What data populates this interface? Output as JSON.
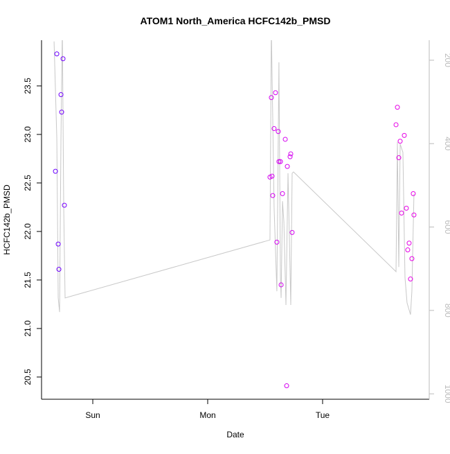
{
  "chart_data": {
    "type": "scatter",
    "title": "ATOM1 North_America HCFC142b_PMSD",
    "x_label": "Date",
    "y_label": "HCFC142b_PMSD",
    "xlim": [
      -0.446,
      2.928
    ],
    "xticks": [
      {
        "value": 0,
        "label": "Sun"
      },
      {
        "value": 1,
        "label": "Mon"
      },
      {
        "value": 2,
        "label": "Tue"
      }
    ],
    "ylim": [
      20.271,
      23.971
    ],
    "yticks": [
      20.5,
      {
        "value": 21,
        "label": "21.0"
      },
      21.5,
      {
        "value": 22,
        "label": "22.0"
      },
      22.5,
      {
        "value": 23,
        "label": "23.0"
      },
      23.5
    ],
    "y2lim": [
      1013,
      152
    ],
    "y2ticks": [
      200,
      400,
      600,
      800,
      1000
    ],
    "y2_color": "#bbbbbb",
    "series": [
      {
        "x": [
          -0.325,
          -0.313,
          -0.301,
          -0.295,
          -0.277,
          -0.271,
          -0.259,
          -0.247,
          1.542,
          1.554,
          1.56,
          1.566,
          1.578,
          1.59,
          1.602,
          1.614,
          1.62,
          1.633,
          1.639,
          1.651,
          1.675,
          1.687,
          1.693,
          1.717,
          1.723,
          1.735,
          2.639,
          2.651,
          2.663,
          2.675,
          2.687,
          2.711,
          2.729,
          2.741,
          2.753,
          2.765,
          2.777,
          2.789,
          2.795
        ],
        "values": [
          22.62,
          23.83,
          21.87,
          21.61,
          23.41,
          23.23,
          23.78,
          22.27,
          22.56,
          23.38,
          22.57,
          22.37,
          23.06,
          23.43,
          21.89,
          23.03,
          22.72,
          22.72,
          21.45,
          22.39,
          22.95,
          20.41,
          22.67,
          22.77,
          22.8,
          21.99,
          23.1,
          23.28,
          22.76,
          22.93,
          22.19,
          22.99,
          22.24,
          21.81,
          21.88,
          21.51,
          21.72,
          22.39,
          22.17
        ],
        "colors": [
          "#6a00ff",
          "#6c00ff",
          "#6e00ff",
          "#7000ff",
          "#7200ff",
          "#7400ff",
          "#7600ff",
          "#7800ff",
          "#d400f0",
          "#d400f0",
          "#d400f0",
          "#d400f0",
          "#d400f0",
          "#d400f0",
          "#d400f0",
          "#d400f0",
          "#d400f0",
          "#d400f0",
          "#d400f0",
          "#d400f0",
          "#d400f0",
          "#d400f0",
          "#d400f0",
          "#d400f0",
          "#d400f0",
          "#d400f0",
          "#e600e6",
          "#e600e6",
          "#e600e6",
          "#e600e6",
          "#e600e6",
          "#e600e6",
          "#e600e6",
          "#e600e6",
          "#e600e6",
          "#e600e6",
          "#e600e6",
          "#e600e6",
          "#e600e6"
        ]
      },
      {
        "type": "line",
        "axis": "y2",
        "color": "#c8c8c8",
        "x": [
          -0.337,
          -0.313,
          -0.301,
          -0.289,
          -0.277,
          -0.265,
          -0.253,
          -0.241,
          1.542,
          1.554,
          1.578,
          1.602,
          1.62,
          1.633,
          1.639,
          1.651,
          1.663,
          1.681,
          1.699,
          1.723,
          1.735,
          1.747,
          2.639,
          2.651,
          2.663,
          2.675,
          2.699,
          2.717,
          2.735,
          2.765,
          2.777,
          2.795
        ],
        "values": [
          155,
          388,
          770,
          804,
          388,
          122,
          554,
          770,
          631,
          122,
          554,
          754,
          205,
          721,
          770,
          538,
          587,
          787,
          471,
          787,
          471,
          468,
          707,
          396,
          696,
          401,
          421,
          721,
          782,
          810,
          754,
          521
        ]
      }
    ]
  }
}
